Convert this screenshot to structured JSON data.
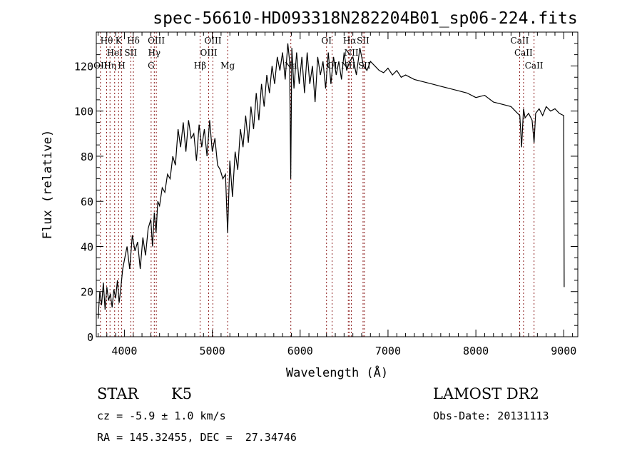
{
  "chart_data": {
    "type": "line",
    "title": "spec-56610-HD093318N282204B01_sp06-224.fits",
    "xlabel": "Wavelength (Å)",
    "ylabel": "Flux (relative)",
    "xlim": [
      3680,
      9160
    ],
    "ylim": [
      0,
      135
    ],
    "xticks": [
      4000,
      5000,
      6000,
      7000,
      8000,
      9000
    ],
    "yticks": [
      0,
      20,
      40,
      60,
      80,
      100,
      120
    ],
    "series": [
      {
        "name": "spectrum",
        "x": [
          3700,
          3720,
          3740,
          3760,
          3780,
          3800,
          3820,
          3840,
          3860,
          3880,
          3900,
          3920,
          3940,
          3960,
          3980,
          4000,
          4030,
          4060,
          4090,
          4120,
          4150,
          4180,
          4210,
          4240,
          4270,
          4300,
          4320,
          4340,
          4360,
          4380,
          4400,
          4430,
          4460,
          4490,
          4520,
          4550,
          4580,
          4610,
          4640,
          4670,
          4700,
          4730,
          4760,
          4790,
          4820,
          4850,
          4880,
          4910,
          4940,
          4970,
          5000,
          5030,
          5060,
          5090,
          5120,
          5150,
          5175,
          5200,
          5230,
          5260,
          5290,
          5320,
          5350,
          5380,
          5410,
          5440,
          5470,
          5500,
          5530,
          5560,
          5590,
          5620,
          5650,
          5680,
          5710,
          5740,
          5770,
          5800,
          5830,
          5860,
          5880,
          5893,
          5905,
          5930,
          5960,
          5990,
          6020,
          6050,
          6080,
          6110,
          6140,
          6170,
          6200,
          6230,
          6260,
          6290,
          6320,
          6350,
          6380,
          6410,
          6440,
          6470,
          6500,
          6530,
          6563,
          6600,
          6640,
          6680,
          6720,
          6760,
          6800,
          6850,
          6900,
          6950,
          7000,
          7050,
          7100,
          7150,
          7200,
          7300,
          7400,
          7500,
          7600,
          7700,
          7800,
          7900,
          8000,
          8100,
          8200,
          8300,
          8400,
          8450,
          8500,
          8520,
          8542,
          8560,
          8600,
          8640,
          8662,
          8680,
          8720,
          8760,
          8800,
          8850,
          8900,
          8950,
          9000,
          9005
        ],
        "y": [
          8,
          20,
          14,
          24,
          12,
          22,
          16,
          19,
          13,
          21,
          17,
          25,
          15,
          22,
          30,
          34,
          40,
          30,
          45,
          38,
          42,
          30,
          44,
          36,
          48,
          52,
          40,
          55,
          46,
          60,
          58,
          66,
          64,
          72,
          70,
          80,
          76,
          92,
          84,
          95,
          82,
          96,
          88,
          90,
          78,
          94,
          84,
          92,
          80,
          96,
          82,
          88,
          76,
          74,
          70,
          72,
          46,
          78,
          62,
          82,
          74,
          92,
          84,
          98,
          86,
          102,
          92,
          108,
          96,
          112,
          102,
          116,
          108,
          120,
          112,
          124,
          118,
          126,
          114,
          130,
          122,
          70,
          128,
          110,
          126,
          112,
          124,
          108,
          126,
          112,
          120,
          104,
          124,
          116,
          122,
          110,
          126,
          112,
          124,
          116,
          122,
          114,
          126,
          118,
          122,
          124,
          116,
          128,
          120,
          118,
          122,
          120,
          118,
          117,
          119,
          116,
          118,
          115,
          116,
          114,
          113,
          112,
          111,
          110,
          109,
          108,
          106,
          107,
          104,
          103,
          102,
          100,
          98,
          84,
          101,
          97,
          99,
          96,
          86,
          99,
          101,
          98,
          102,
          100,
          101,
          99,
          98,
          22
        ],
        "color": "#000000"
      }
    ],
    "lines": [
      {
        "label": "OII",
        "wave": 3727
      },
      {
        "label": "Hθ",
        "wave": 3798
      },
      {
        "label": "Hη",
        "wave": 3836
      },
      {
        "label": "HeI",
        "wave": 3889
      },
      {
        "label": "K",
        "wave": 3934
      },
      {
        "label": "H",
        "wave": 3969
      },
      {
        "label": "SII",
        "wave": 4072
      },
      {
        "label": "Hδ",
        "wave": 4102
      },
      {
        "label": "G",
        "wave": 4304
      },
      {
        "label": "Hγ",
        "wave": 4340
      },
      {
        "label": "OIII",
        "wave": 4363
      },
      {
        "label": "Hβ",
        "wave": 4861
      },
      {
        "label": "OIII",
        "wave": 4959
      },
      {
        "label": "OIII",
        "wave": 5007
      },
      {
        "label": "Mg",
        "wave": 5175
      },
      {
        "label": "Na",
        "wave": 5894
      },
      {
        "label": "OI",
        "wave": 6300
      },
      {
        "label": "OI",
        "wave": 6364
      },
      {
        "label": "NII",
        "wave": 6548
      },
      {
        "label": "Hα",
        "wave": 6563
      },
      {
        "label": "NII",
        "wave": 6583
      },
      {
        "label": "SII",
        "wave": 6716
      },
      {
        "label": "SII",
        "wave": 6731
      },
      {
        "label": "CaII",
        "wave": 8498
      },
      {
        "label": "CaII",
        "wave": 8542
      },
      {
        "label": "CaII",
        "wave": 8662
      }
    ],
    "line_color": "#8b1a1a"
  },
  "info": {
    "class": "STAR",
    "subclass": "K5",
    "survey": "LAMOST DR2",
    "cz": "cz = -5.9 ± 1.0 km/s",
    "obs_date": "Obs-Date: 20131113",
    "radec": "RA = 145.32455, DEC =  27.34746"
  }
}
